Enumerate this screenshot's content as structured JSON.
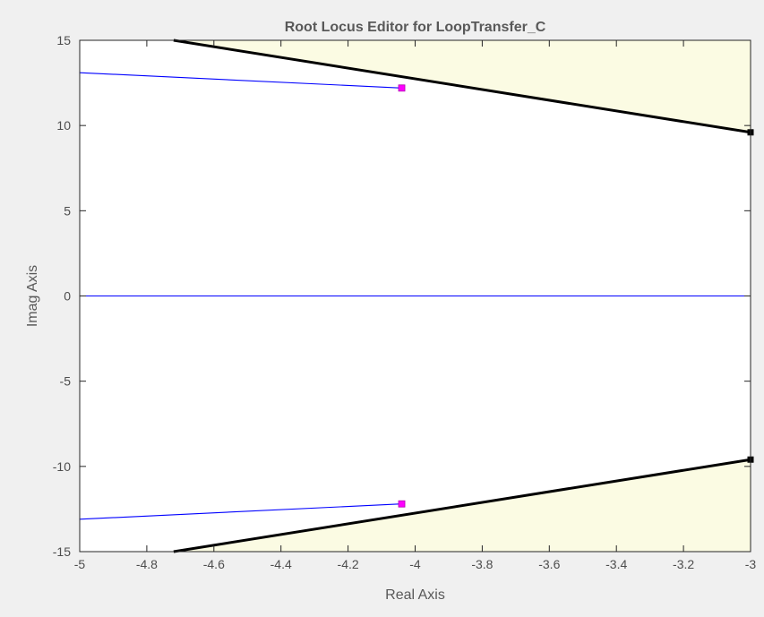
{
  "chart_data": {
    "type": "line",
    "title": "Root Locus Editor for LoopTransfer_C",
    "xlabel": "Real Axis",
    "ylabel": "Imag Axis",
    "xlim": [
      -5,
      -3
    ],
    "ylim": [
      -15,
      15
    ],
    "x_ticks": [
      -5,
      -4.8,
      -4.6,
      -4.4,
      -4.2,
      -4,
      -3.8,
      -3.6,
      -3.4,
      -3.2,
      -3
    ],
    "x_tick_labels": [
      "-5",
      "-4.8",
      "-4.6",
      "-4.4",
      "-4.2",
      "-4",
      "-3.8",
      "-3.6",
      "-3.4",
      "-3.2",
      "-3"
    ],
    "y_ticks": [
      15,
      10,
      5,
      0,
      -5,
      -10,
      -15
    ],
    "y_tick_labels": [
      "15",
      "10",
      "5",
      "0",
      "-5",
      "-10",
      "-15"
    ],
    "grid": false,
    "series": [
      {
        "kind": "locus",
        "points": [
          [
            -5,
            13.1
          ],
          [
            -4.04,
            12.2
          ]
        ]
      },
      {
        "kind": "locus",
        "points": [
          [
            -5,
            0
          ],
          [
            -3,
            0
          ]
        ]
      },
      {
        "kind": "locus",
        "points": [
          [
            -5,
            -13.1
          ],
          [
            -4.04,
            -12.2
          ]
        ]
      },
      {
        "kind": "constraint",
        "points": [
          [
            -4.72,
            15
          ],
          [
            -3,
            9.6
          ]
        ]
      },
      {
        "kind": "constraint",
        "points": [
          [
            -4.72,
            -15
          ],
          [
            -3,
            -9.6
          ]
        ]
      }
    ],
    "closed_loop_poles": [
      [
        -4.04,
        12.2
      ],
      [
        -4.04,
        -12.2
      ]
    ],
    "constraint_fill_regions": [
      [
        [
          -4.72,
          15
        ],
        [
          -3,
          15
        ],
        [
          -3,
          9.6
        ]
      ],
      [
        [
          -4.72,
          -15
        ],
        [
          -3,
          -15
        ],
        [
          -3,
          -9.6
        ]
      ]
    ],
    "colors": {
      "locus": "#0000ff",
      "constraint": "#000000",
      "constraint_fill": "#fbfbe3",
      "pole_marker": "#ff00ff",
      "axes_background": "#ffffff",
      "figure_background": "#f0f0f0"
    }
  }
}
